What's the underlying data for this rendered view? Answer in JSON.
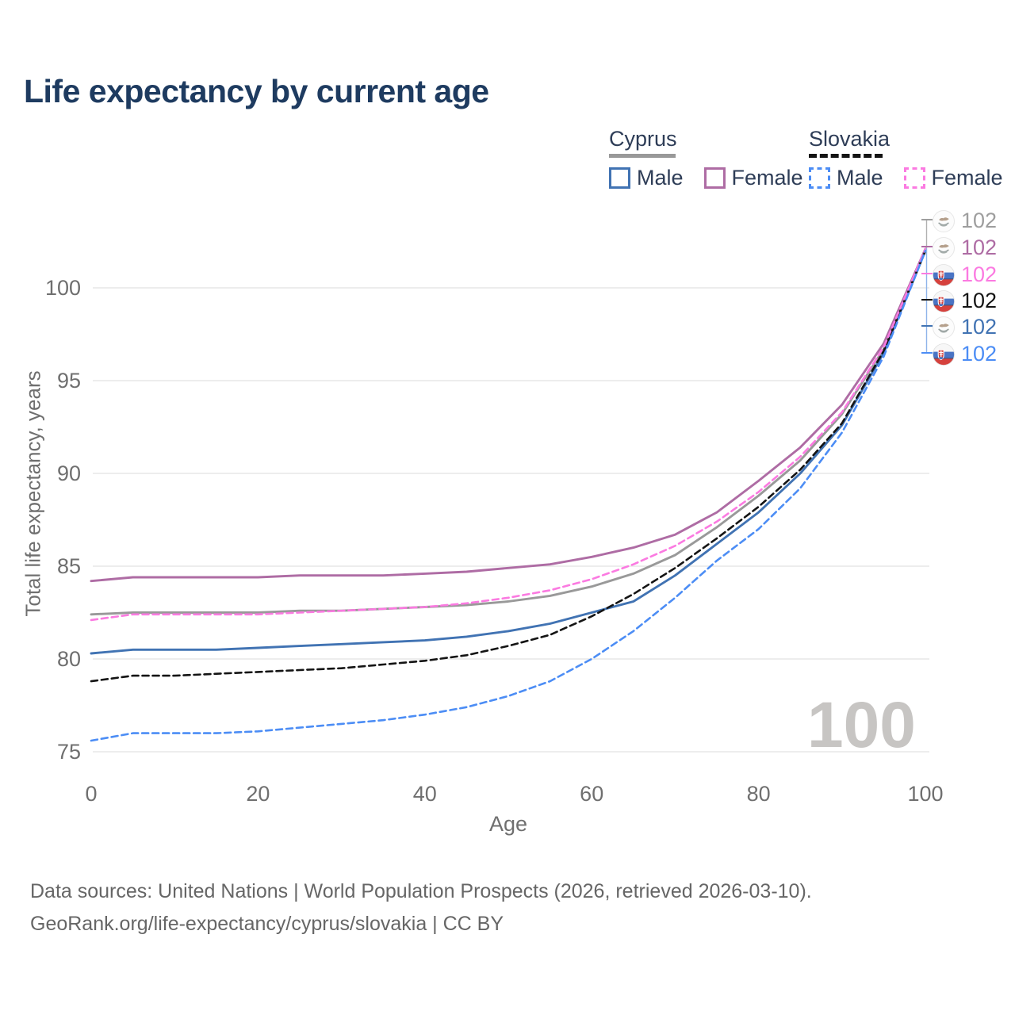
{
  "title": "Life expectancy by current age",
  "legend": {
    "groups": [
      {
        "country": "Cyprus",
        "line_style": "solid",
        "line_color": "#999999",
        "items": [
          {
            "label": "Male",
            "color": "#4173b3",
            "dashed": false
          },
          {
            "label": "Female",
            "color": "#ae6ca4",
            "dashed": false
          }
        ]
      },
      {
        "country": "Slovakia",
        "line_style": "dashed",
        "line_color": "#141414",
        "items": [
          {
            "label": "Male",
            "color": "#4c8df5",
            "dashed": true
          },
          {
            "label": "Female",
            "color": "#fb7ae1",
            "dashed": true
          }
        ]
      }
    ]
  },
  "chart_data": {
    "type": "line",
    "title": "Life expectancy by current age",
    "xlabel": "Age",
    "ylabel": "Total life expectancy, years",
    "xlim": [
      0,
      100
    ],
    "ylim": [
      75,
      102.5
    ],
    "xticks": [
      0,
      20,
      40,
      60,
      80,
      100
    ],
    "yticks": [
      75,
      80,
      85,
      90,
      95,
      100
    ],
    "grid": "horizontal",
    "legend_position": "top-right",
    "x": [
      0,
      5,
      10,
      15,
      20,
      25,
      30,
      35,
      40,
      45,
      50,
      55,
      60,
      65,
      70,
      75,
      80,
      85,
      90,
      95,
      100
    ],
    "series": [
      {
        "name": "Cyprus Both sexes",
        "country": "Cyprus",
        "color": "#999999",
        "dashed": false,
        "values": [
          82.4,
          82.5,
          82.5,
          82.5,
          82.5,
          82.6,
          82.6,
          82.7,
          82.8,
          82.9,
          83.1,
          83.4,
          83.9,
          84.6,
          85.6,
          87.1,
          88.8,
          90.7,
          93.2,
          96.7,
          102.1
        ]
      },
      {
        "name": "Cyprus Male",
        "country": "Cyprus",
        "color": "#4173b3",
        "dashed": false,
        "values": [
          80.3,
          80.5,
          80.5,
          80.5,
          80.6,
          80.7,
          80.8,
          80.9,
          81.0,
          81.2,
          81.5,
          81.9,
          82.5,
          83.1,
          84.5,
          86.2,
          87.9,
          90.0,
          92.6,
          96.5,
          102.0
        ]
      },
      {
        "name": "Cyprus Female",
        "country": "Cyprus",
        "color": "#ae6ca4",
        "dashed": false,
        "values": [
          84.2,
          84.4,
          84.4,
          84.4,
          84.4,
          84.5,
          84.5,
          84.5,
          84.6,
          84.7,
          84.9,
          85.1,
          85.5,
          86.0,
          86.7,
          87.9,
          89.6,
          91.4,
          93.7,
          97.0,
          102.1
        ]
      },
      {
        "name": "Slovakia Both sexes",
        "country": "Slovakia",
        "color": "#141414",
        "dashed": true,
        "values": [
          78.8,
          79.1,
          79.1,
          79.2,
          79.3,
          79.4,
          79.5,
          79.7,
          79.9,
          80.2,
          80.7,
          81.3,
          82.3,
          83.5,
          84.9,
          86.5,
          88.2,
          90.2,
          92.7,
          96.6,
          102.0
        ]
      },
      {
        "name": "Slovakia Female",
        "country": "Slovakia",
        "color": "#fb7ae1",
        "dashed": true,
        "values": [
          82.1,
          82.4,
          82.4,
          82.4,
          82.4,
          82.5,
          82.6,
          82.7,
          82.8,
          83.0,
          83.3,
          83.7,
          84.3,
          85.1,
          86.1,
          87.4,
          89.0,
          90.9,
          93.3,
          96.8,
          102.1
        ]
      },
      {
        "name": "Slovakia Male",
        "country": "Slovakia",
        "color": "#4c8df5",
        "dashed": true,
        "values": [
          75.6,
          76.0,
          76.0,
          76.0,
          76.1,
          76.3,
          76.5,
          76.7,
          77.0,
          77.4,
          78.0,
          78.8,
          80.0,
          81.5,
          83.3,
          85.3,
          87.0,
          89.2,
          92.2,
          96.3,
          102.0
        ]
      }
    ],
    "end_labels": [
      {
        "value": "102",
        "flag": "cyprus",
        "color": "#9e9e9e"
      },
      {
        "value": "102",
        "flag": "cyprus",
        "color": "#ae6ca4"
      },
      {
        "value": "102",
        "flag": "slovakia",
        "color": "#fb7ae1"
      },
      {
        "value": "102",
        "flag": "slovakia",
        "color": "#141414"
      },
      {
        "value": "102",
        "flag": "cyprus",
        "color": "#4173b3"
      },
      {
        "value": "102",
        "flag": "slovakia",
        "color": "#4c8df5"
      }
    ]
  },
  "watermark": "100",
  "footer": {
    "line1": "Data sources: United Nations | World Population Prospects (2026, retrieved 2026-03-10).",
    "line2": "GeoRank.org/life-expectancy/cyprus/slovakia | CC BY"
  }
}
